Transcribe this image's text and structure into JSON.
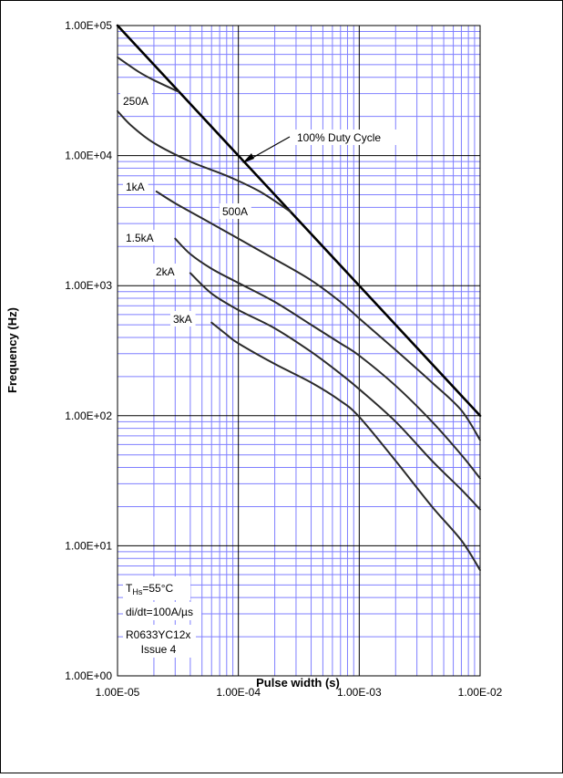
{
  "chart_data": {
    "type": "line",
    "title": "",
    "xlabel": "Pulse width (s)",
    "ylabel": "Frequency (Hz)",
    "x_scale": "log",
    "y_scale": "log",
    "xlim": [
      1e-05,
      0.01
    ],
    "ylim": [
      1,
      100000
    ],
    "grid": true,
    "x_tick_labels": [
      "1.00E-05",
      "1.00E-04",
      "1.00E-03",
      "1.00E-02"
    ],
    "y_tick_labels": [
      "1.00E+00",
      "1.00E+01",
      "1.00E+02",
      "1.00E+03",
      "1.00E+04",
      "1.00E+05"
    ],
    "series": [
      {
        "name": "100% Duty Cycle",
        "label": "100% Duty Cycle",
        "bold": true,
        "points": [
          [
            1e-05,
            100000
          ],
          [
            0.01,
            100
          ]
        ]
      },
      {
        "name": "250A",
        "label": "250A",
        "points": [
          [
            1e-05,
            57000
          ],
          [
            1.5e-05,
            44000
          ],
          [
            2e-05,
            38000
          ],
          [
            3.2e-05,
            31000
          ]
        ]
      },
      {
        "name": "500A",
        "label": "500A",
        "points": [
          [
            1e-05,
            22000
          ],
          [
            1.3e-05,
            17000
          ],
          [
            2e-05,
            12500
          ],
          [
            4e-05,
            9000
          ],
          [
            8e-05,
            7000
          ],
          [
            0.00015,
            5300
          ],
          [
            0.00027,
            3700
          ]
        ]
      },
      {
        "name": "1kA",
        "label": "1kA",
        "points": [
          [
            2.1e-05,
            5300
          ],
          [
            3e-05,
            4300
          ],
          [
            5e-05,
            3300
          ],
          [
            0.0001,
            2300
          ],
          [
            0.0002,
            1600
          ],
          [
            0.0004,
            1100
          ],
          [
            0.0007,
            750
          ],
          [
            0.001,
            560
          ],
          [
            0.002,
            320
          ],
          [
            0.004,
            180
          ],
          [
            0.007,
            110
          ],
          [
            0.01,
            65
          ]
        ]
      },
      {
        "name": "1.5kA",
        "label": "1.5kA",
        "points": [
          [
            3e-05,
            2300
          ],
          [
            4e-05,
            1750
          ],
          [
            6e-05,
            1350
          ],
          [
            0.0001,
            1050
          ],
          [
            0.0002,
            750
          ],
          [
            0.0004,
            500
          ],
          [
            0.0007,
            360
          ],
          [
            0.001,
            290
          ],
          [
            0.002,
            170
          ],
          [
            0.004,
            90
          ],
          [
            0.007,
            50
          ],
          [
            0.01,
            33
          ]
        ]
      },
      {
        "name": "2kA",
        "label": "2kA",
        "points": [
          [
            4e-05,
            1250
          ],
          [
            6e-05,
            870
          ],
          [
            0.0001,
            650
          ],
          [
            0.0002,
            470
          ],
          [
            0.0004,
            310
          ],
          [
            0.0007,
            210
          ],
          [
            0.001,
            160
          ],
          [
            0.002,
            90
          ],
          [
            0.004,
            45
          ],
          [
            0.007,
            27
          ],
          [
            0.01,
            19
          ]
        ]
      },
      {
        "name": "3kA",
        "label": "3kA",
        "points": [
          [
            6e-05,
            520
          ],
          [
            8e-05,
            420
          ],
          [
            0.0001,
            360
          ],
          [
            0.0002,
            250
          ],
          [
            0.0004,
            180
          ],
          [
            0.0007,
            130
          ],
          [
            0.001,
            98
          ],
          [
            0.002,
            45
          ],
          [
            0.004,
            20
          ],
          [
            0.007,
            11
          ],
          [
            0.01,
            6.5
          ]
        ]
      }
    ],
    "annotations": [
      {
        "id": "ths",
        "label": "T",
        "sub": "Hs",
        "suffix": "=55°C"
      },
      {
        "id": "didt",
        "text": "di/dt=100A/µs"
      },
      {
        "id": "code",
        "text": "R0633YC12x"
      },
      {
        "id": "issue",
        "text": "Issue 4"
      }
    ]
  }
}
